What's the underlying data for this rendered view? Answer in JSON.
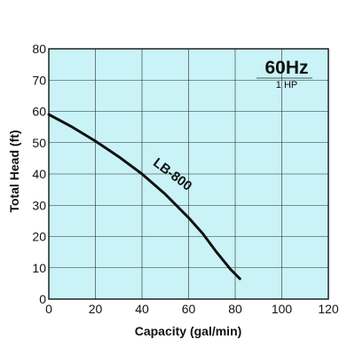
{
  "chart_data": {
    "type": "line",
    "title": "60Hz",
    "subtitle": "1 HP",
    "xlabel": "Capacity (gal/min)",
    "ylabel": "Total Head (ft)",
    "xlim": [
      0,
      120
    ],
    "ylim": [
      0,
      80
    ],
    "xticks": [
      0,
      20,
      40,
      60,
      80,
      100,
      120
    ],
    "yticks": [
      0,
      10,
      20,
      30,
      40,
      50,
      60,
      70,
      80
    ],
    "grid": true,
    "background_color": "#c9f3f7",
    "series": [
      {
        "name": "LB-800",
        "color": "#111111",
        "points": [
          [
            0,
            59
          ],
          [
            10,
            55
          ],
          [
            20,
            50.5
          ],
          [
            30,
            45.5
          ],
          [
            40,
            40
          ],
          [
            50,
            33.5
          ],
          [
            60,
            26
          ],
          [
            66,
            21
          ],
          [
            72,
            15
          ],
          [
            78,
            9.5
          ],
          [
            82,
            6.5
          ]
        ]
      }
    ]
  }
}
